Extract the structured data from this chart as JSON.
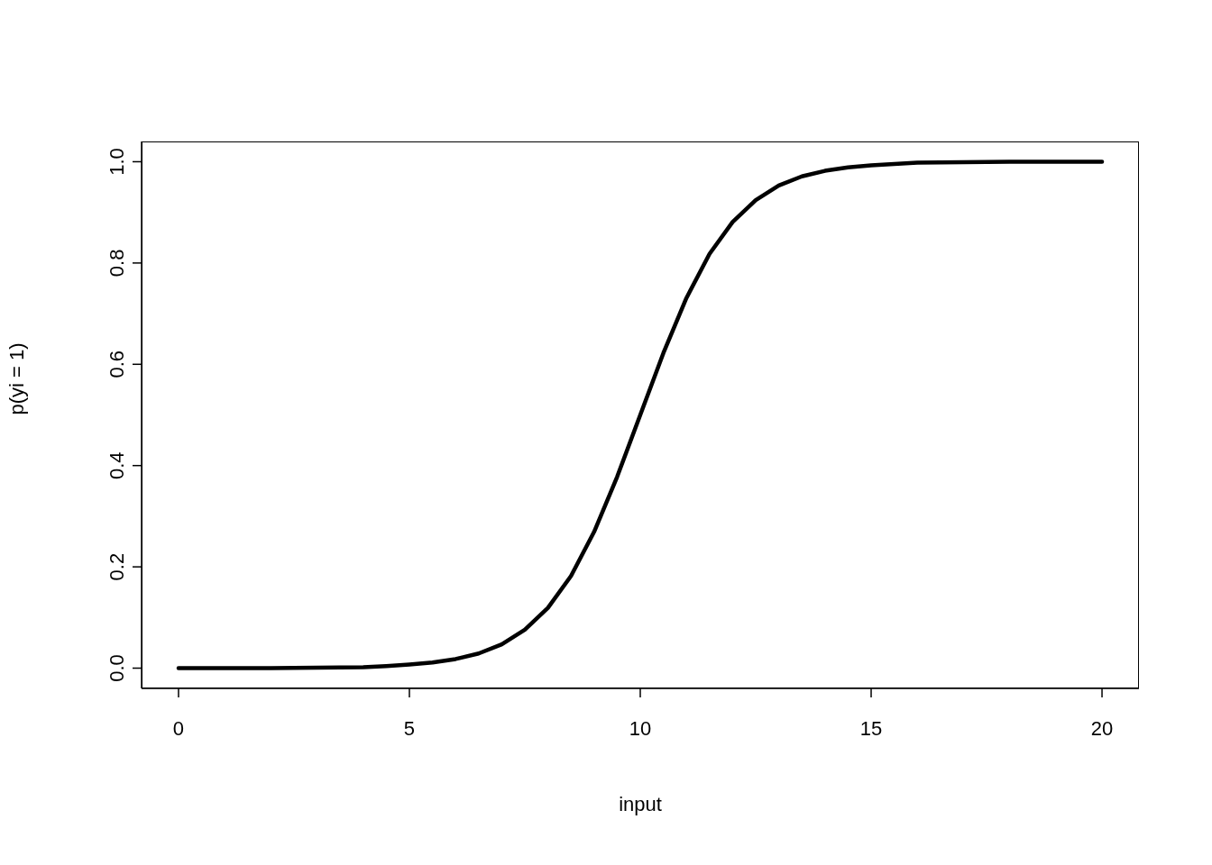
{
  "chart_data": {
    "type": "line",
    "xlabel": "input",
    "ylabel": "p(yi = 1)",
    "x": [
      0,
      1,
      2,
      3,
      4,
      4.5,
      5,
      5.5,
      6,
      6.5,
      7,
      7.5,
      8,
      8.5,
      9,
      9.5,
      10,
      10.5,
      11,
      11.5,
      12,
      12.5,
      13,
      13.5,
      14,
      14.5,
      15,
      16,
      17,
      18,
      19,
      20
    ],
    "series": [
      {
        "color": "#000000",
        "values": [
          0,
          0,
          0,
          0.001,
          0.002,
          0.004,
          0.007,
          0.011,
          0.018,
          0.029,
          0.047,
          0.076,
          0.119,
          0.182,
          0.269,
          0.378,
          0.5,
          0.622,
          0.731,
          0.818,
          0.881,
          0.924,
          0.953,
          0.971,
          0.982,
          0.989,
          0.993,
          0.998,
          0.999,
          1,
          1,
          1
        ]
      }
    ],
    "xlim": [
      -0.8,
      20.8
    ],
    "xticks": [
      0,
      5,
      10,
      15,
      20
    ],
    "ylim": [
      -0.04,
      1.04
    ],
    "yticks": [
      {
        "value": 0,
        "label": "0.0"
      },
      {
        "value": 0.2,
        "label": "0.2"
      },
      {
        "value": 0.4,
        "label": "0.4"
      },
      {
        "value": 0.6,
        "label": "0.6"
      },
      {
        "value": 0.8,
        "label": "0.8"
      },
      {
        "value": 1,
        "label": "1.0"
      }
    ],
    "grid": false,
    "legend": false,
    "marker": "none",
    "line_style": "solid"
  }
}
